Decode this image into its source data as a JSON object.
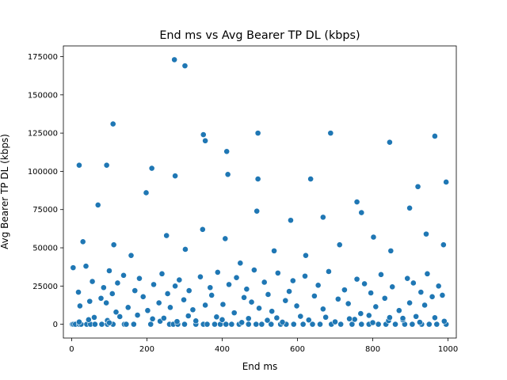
{
  "chart_data": {
    "type": "scatter",
    "title": "End ms vs Avg Bearer TP DL (kbps)",
    "xlabel": "End ms",
    "ylabel": "Avg Bearer TP DL (kbps)",
    "xlim": [
      -22,
      1022
    ],
    "ylim": [
      -9000,
      182000
    ],
    "xticks": [
      0,
      200,
      400,
      600,
      800,
      1000
    ],
    "yticks": [
      0,
      25000,
      50000,
      75000,
      100000,
      125000,
      150000,
      175000
    ],
    "xtick_labels": [
      "0",
      "200",
      "400",
      "600",
      "800",
      "1000"
    ],
    "ytick_labels": [
      "0",
      "25000",
      "50000",
      "75000",
      "100000",
      "125000",
      "150000",
      "175000"
    ],
    "grid": false,
    "marker_color": "#1f77b4",
    "series": [
      {
        "x": [
          2,
          5,
          10,
          20,
          25,
          40,
          50,
          62,
          80,
          95,
          110,
          140,
          145,
          165,
          210,
          260,
          270,
          282,
          300,
          330,
          350,
          360,
          380,
          395,
          410,
          425,
          445,
          470,
          490,
          505,
          530,
          555,
          570,
          590,
          615,
          640,
          660,
          690,
          715,
          745,
          770,
          790,
          815,
          835,
          860,
          885,
          905,
          930,
          950,
          970,
          995,
          20,
          45,
          95,
          100,
          215,
          235,
          280,
          330,
          400,
          452,
          520,
          560,
          630,
          700,
          752,
          800,
          842,
          880,
          925,
          990,
          60,
          128,
          175,
          245,
          310,
          385,
          470,
          545,
          608,
          675,
          738,
          790,
          845,
          880,
          915,
          965,
          18,
          22,
          38,
          48,
          55,
          78,
          85,
          92,
          100,
          108,
          118,
          122,
          138,
          150,
          168,
          180,
          190,
          202,
          218,
          232,
          240,
          255,
          262,
          275,
          286,
          298,
          312,
          322,
          342,
          355,
          368,
          372,
          388,
          402,
          418,
          432,
          438,
          458,
          465,
          478,
          485,
          498,
          512,
          522,
          532,
          548,
          568,
          578,
          588,
          598,
          620,
          645,
          655,
          668,
          683,
          708,
          725,
          735,
          758,
          768,
          778,
          795,
          808,
          822,
          832,
          852,
          870,
          892,
          898,
          908,
          928,
          938,
          945,
          958,
          975,
          985,
          4,
          30,
          70,
          112,
          158,
          198,
          252,
          302,
          348,
          408,
          448,
          492,
          538,
          582,
          622,
          668,
          712,
          758,
          802,
          848,
          898,
          942,
          988,
          273,
          301,
          110,
          350,
          355,
          412,
          495,
          688,
          965,
          845,
          20,
          93,
          213,
          275,
          495,
          415,
          635,
          920,
          770,
          995
        ],
        "y": [
          0,
          0,
          0,
          0,
          0,
          0,
          0,
          0,
          0,
          0,
          0,
          0,
          0,
          0,
          0,
          0,
          0,
          0,
          0,
          0,
          0,
          0,
          0,
          0,
          0,
          0,
          0,
          0,
          0,
          0,
          0,
          0,
          0,
          0,
          0,
          0,
          0,
          0,
          0,
          0,
          0,
          0,
          0,
          0,
          0,
          0,
          0,
          0,
          0,
          0,
          0,
          1500,
          3000,
          2500,
          1000,
          3500,
          2000,
          1800,
          2200,
          3000,
          1200,
          2600,
          1400,
          2800,
          1600,
          3200,
          1100,
          2400,
          2900,
          1300,
          2000,
          4500,
          5000,
          6000,
          4000,
          5500,
          4800,
          3800,
          4200,
          5200,
          4600,
          3600,
          5800,
          4400,
          3900,
          5100,
          4300,
          21000,
          12000,
          38000,
          15000,
          28000,
          17000,
          24000,
          14000,
          35000,
          20000,
          8000,
          27000,
          32000,
          11000,
          22000,
          30000,
          18000,
          9000,
          26000,
          14000,
          33000,
          20000,
          11000,
          25000,
          29000,
          16000,
          22000,
          9500,
          31000,
          12500,
          24000,
          19000,
          34000,
          13000,
          26000,
          7500,
          30500,
          17500,
          23000,
          14500,
          35500,
          10500,
          27500,
          19500,
          8500,
          33500,
          15500,
          21500,
          28500,
          12000,
          31500,
          18500,
          25500,
          10000,
          34500,
          16500,
          22500,
          13500,
          29500,
          7000,
          26500,
          20500,
          11500,
          32500,
          17000,
          24500,
          9000,
          30000,
          14000,
          27000,
          21000,
          12500,
          33000,
          18000,
          25000,
          19000,
          37000,
          54000,
          78000,
          52000,
          45000,
          86000,
          58000,
          49000,
          62000,
          56000,
          40000,
          74000,
          48000,
          68000,
          45000,
          70000,
          52000,
          80000,
          57000,
          48000,
          76000,
          59000,
          52000,
          173000,
          169000,
          131000,
          124000,
          120000,
          113000,
          125000,
          125000,
          123000,
          119000,
          104000,
          104000,
          102000,
          97000,
          95000,
          98000,
          95000,
          90000,
          73000,
          93000
        ]
      }
    ]
  }
}
